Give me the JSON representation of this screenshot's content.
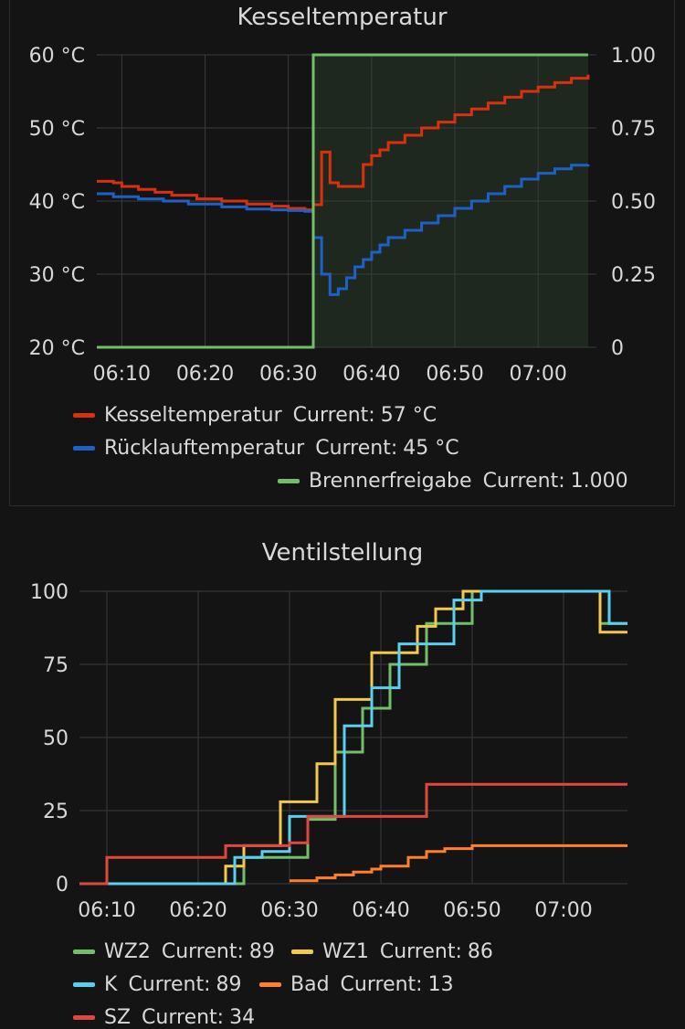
{
  "chart_data": [
    {
      "type": "line",
      "title": "Kesseltemperatur",
      "x_ticks": [
        "06:10",
        "06:20",
        "06:30",
        "06:40",
        "06:50",
        "07:00"
      ],
      "xlim": [
        "06:07",
        "07:07"
      ],
      "y_left": {
        "ticks": [
          "20 °C",
          "30 °C",
          "40 °C",
          "50 °C",
          "60 °C"
        ],
        "lim": [
          20,
          60
        ],
        "unit": "°C"
      },
      "y_right": {
        "ticks": [
          "0",
          "0.25",
          "0.50",
          "0.75",
          "1.00"
        ],
        "lim": [
          0,
          1
        ]
      },
      "grid": true,
      "shaded_region": {
        "x": [
          "06:33",
          "07:06"
        ],
        "reason": "Brennerfreigabe = 1"
      },
      "series": [
        {
          "name": "Kesseltemperatur",
          "color": "#d9300f",
          "axis": "left",
          "current": "57 °C",
          "x": [
            "06:07",
            "06:09",
            "06:10",
            "06:12",
            "06:14",
            "06:16",
            "06:19",
            "06:22",
            "06:25",
            "06:28",
            "06:30",
            "06:32",
            "06:33",
            "06:34",
            "06:35",
            "06:36",
            "06:38",
            "06:39",
            "06:40",
            "06:41",
            "06:42",
            "06:44",
            "06:46",
            "06:48",
            "06:50",
            "06:52",
            "06:54",
            "06:56",
            "06:58",
            "07:00",
            "07:02",
            "07:04",
            "07:06"
          ],
          "y": [
            42.7,
            42.5,
            42.0,
            41.6,
            41.2,
            40.8,
            40.3,
            40.0,
            39.6,
            39.3,
            39.0,
            38.8,
            39.5,
            46.7,
            42.5,
            42.0,
            42.0,
            45.0,
            46.2,
            47.0,
            48.0,
            49.0,
            50.0,
            50.8,
            51.8,
            52.6,
            53.4,
            54.2,
            55.0,
            55.6,
            56.2,
            56.8,
            57.3
          ]
        },
        {
          "name": "Rücklauftemperatur",
          "color": "#1f60c4",
          "axis": "left",
          "current": "45 °C",
          "x": [
            "06:07",
            "06:09",
            "06:12",
            "06:15",
            "06:18",
            "06:22",
            "06:25",
            "06:28",
            "06:30",
            "06:32",
            "06:33",
            "06:34",
            "06:35",
            "06:36",
            "06:37",
            "06:38",
            "06:39",
            "06:40",
            "06:41",
            "06:42",
            "06:44",
            "06:46",
            "06:48",
            "06:50",
            "06:52",
            "06:54",
            "06:56",
            "06:58",
            "07:00",
            "07:02",
            "07:04",
            "07:06"
          ],
          "y": [
            41.0,
            40.6,
            40.3,
            40.0,
            39.6,
            39.2,
            38.9,
            38.8,
            38.7,
            38.6,
            35.0,
            30.0,
            27.2,
            28.0,
            29.5,
            31.0,
            32.0,
            33.0,
            34.0,
            35.0,
            36.0,
            37.0,
            38.0,
            39.0,
            40.0,
            41.0,
            42.0,
            43.0,
            43.8,
            44.4,
            44.9,
            45.0
          ]
        },
        {
          "name": "Brennerfreigabe",
          "color": "#73bf69",
          "axis": "right",
          "current": "1.000",
          "x": [
            "06:07",
            "06:33",
            "06:33",
            "07:06"
          ],
          "y": [
            0,
            0,
            1,
            1
          ]
        }
      ],
      "legend_placement": "bottom"
    },
    {
      "type": "line",
      "title": "Ventilstellung",
      "x_ticks": [
        "06:10",
        "06:20",
        "06:30",
        "06:40",
        "06:50",
        "07:00"
      ],
      "xlim": [
        "06:07",
        "07:07"
      ],
      "y_ticks": [
        "0",
        "25",
        "50",
        "75",
        "100"
      ],
      "ylim": [
        0,
        100
      ],
      "grid": true,
      "series": [
        {
          "name": "WZ2",
          "color": "#73bf69",
          "current": "89",
          "x": [
            "06:07",
            "06:23",
            "06:25",
            "06:30",
            "06:32",
            "06:35",
            "06:37",
            "06:38",
            "06:41",
            "06:45",
            "06:47",
            "06:50",
            "06:51",
            "07:03",
            "07:04",
            "07:07"
          ],
          "y": [
            0,
            0,
            9,
            9,
            22,
            45,
            45,
            60,
            75,
            89,
            89,
            100,
            100,
            100,
            89,
            89
          ]
        },
        {
          "name": "WZ1",
          "color": "#f2c94c",
          "current": "86",
          "x": [
            "06:07",
            "06:22",
            "06:23",
            "06:25",
            "06:29",
            "06:31",
            "06:33",
            "06:35",
            "06:36",
            "06:39",
            "06:40",
            "06:44",
            "06:46",
            "06:49",
            "06:50",
            "07:03",
            "07:04",
            "07:07"
          ],
          "y": [
            0,
            0,
            6,
            13,
            28,
            28,
            41,
            63,
            63,
            79,
            79,
            88,
            94,
            100,
            100,
            100,
            86,
            86
          ]
        },
        {
          "name": "K",
          "color": "#5ad0f0",
          "current": "89",
          "x": [
            "06:07",
            "06:23",
            "06:24",
            "06:27",
            "06:30",
            "06:33",
            "06:35",
            "06:36",
            "06:37",
            "06:39",
            "06:42",
            "06:46",
            "06:48",
            "06:51",
            "07:04",
            "07:05",
            "07:07"
          ],
          "y": [
            0,
            0,
            9,
            11,
            23,
            23,
            23,
            54,
            54,
            67,
            82,
            82,
            97,
            100,
            100,
            89,
            89
          ]
        },
        {
          "name": "Bad",
          "color": "#ff7f2a",
          "current": "13",
          "x": [
            "06:30",
            "06:33",
            "06:35",
            "06:37",
            "06:39",
            "06:40",
            "06:43",
            "06:45",
            "06:47",
            "06:50",
            "07:07"
          ],
          "y": [
            1,
            2,
            3,
            4,
            5,
            6,
            9,
            11,
            12,
            13,
            13
          ]
        },
        {
          "name": "SZ",
          "color": "#e0473f",
          "current": "34",
          "x": [
            "06:07",
            "06:10",
            "06:19",
            "06:23",
            "06:28",
            "06:30",
            "06:32",
            "06:40",
            "06:44",
            "06:45",
            "07:07"
          ],
          "y": [
            0,
            9,
            9,
            13,
            13,
            14,
            23,
            23,
            23,
            34,
            34
          ]
        }
      ],
      "legend_placement": "bottom"
    }
  ],
  "legend_label_current": "Current:"
}
